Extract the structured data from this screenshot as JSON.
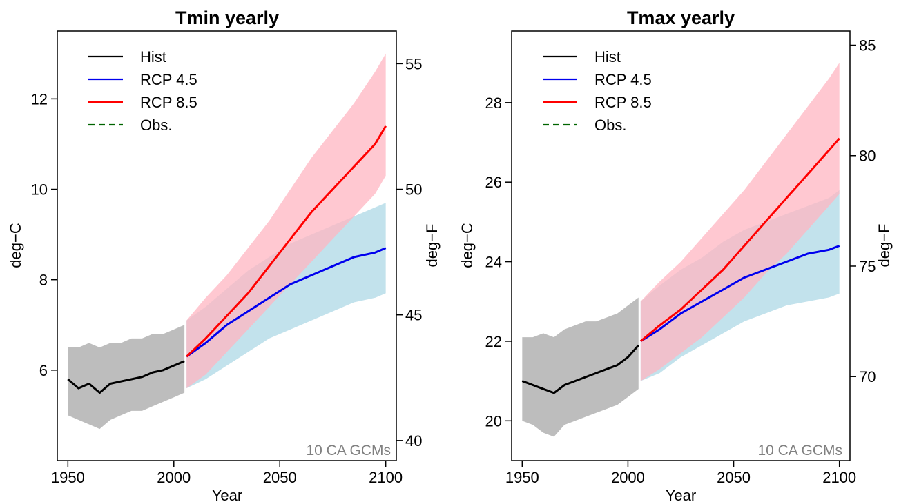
{
  "colors": {
    "hist_line": "#000000",
    "hist_band": "#bdbdbd",
    "rcp45_line": "#0000ee",
    "rcp45_band": "#add8e6",
    "rcp85_line": "#ff0000",
    "rcp85_band": "#ffb6c1",
    "obs_line": "#006400",
    "annotation": "#808080"
  },
  "chart_data": [
    {
      "type": "line",
      "title": "Tmin yearly",
      "xlabel": "Year",
      "ylabel": "deg−C",
      "ylabel_right": "deg−F",
      "xlim": [
        1945,
        2105
      ],
      "ylim": [
        4.0,
        13.5
      ],
      "x_ticks": [
        1950,
        2000,
        2050,
        2100
      ],
      "y_ticks": [
        6,
        8,
        10,
        12
      ],
      "y_ticks_right": [
        40,
        45,
        50,
        55
      ],
      "annotation": "10 CA GCMs",
      "legend_position": "top-left",
      "grid": false,
      "legend": [
        {
          "label": "Hist",
          "key": "hist",
          "style": "solid"
        },
        {
          "label": "RCP 4.5",
          "key": "rcp45",
          "style": "solid"
        },
        {
          "label": "RCP 8.5",
          "key": "rcp85",
          "style": "solid"
        },
        {
          "label": "Obs.",
          "key": "obs",
          "style": "dashed"
        }
      ],
      "series": [
        {
          "name": "Hist",
          "key": "hist",
          "x": [
            1950,
            1955,
            1960,
            1965,
            1970,
            1975,
            1980,
            1985,
            1990,
            1995,
            2000,
            2005
          ],
          "y": [
            5.8,
            5.6,
            5.7,
            5.5,
            5.7,
            5.75,
            5.8,
            5.85,
            5.95,
            6.0,
            6.1,
            6.2
          ],
          "band_low": [
            5.0,
            4.9,
            4.8,
            4.7,
            4.9,
            5.0,
            5.1,
            5.1,
            5.2,
            5.3,
            5.4,
            5.5
          ],
          "band_high": [
            6.5,
            6.5,
            6.6,
            6.5,
            6.6,
            6.6,
            6.7,
            6.7,
            6.8,
            6.8,
            6.9,
            7.0
          ]
        },
        {
          "name": "RCP 4.5",
          "key": "rcp45",
          "x": [
            2006,
            2015,
            2025,
            2035,
            2045,
            2055,
            2065,
            2075,
            2085,
            2095,
            2100
          ],
          "y": [
            6.3,
            6.6,
            7.0,
            7.3,
            7.6,
            7.9,
            8.1,
            8.3,
            8.5,
            8.6,
            8.7
          ],
          "band_low": [
            5.6,
            5.8,
            6.1,
            6.4,
            6.7,
            6.9,
            7.1,
            7.3,
            7.5,
            7.6,
            7.7
          ],
          "band_high": [
            7.1,
            7.4,
            7.8,
            8.2,
            8.5,
            8.8,
            9.0,
            9.2,
            9.4,
            9.6,
            9.7
          ]
        },
        {
          "name": "RCP 8.5",
          "key": "rcp85",
          "x": [
            2006,
            2015,
            2025,
            2035,
            2045,
            2055,
            2065,
            2075,
            2085,
            2095,
            2100
          ],
          "y": [
            6.3,
            6.7,
            7.2,
            7.7,
            8.3,
            8.9,
            9.5,
            10.0,
            10.5,
            11.0,
            11.4
          ],
          "band_low": [
            5.6,
            5.9,
            6.4,
            6.9,
            7.4,
            7.9,
            8.4,
            8.9,
            9.4,
            9.9,
            10.3
          ],
          "band_high": [
            7.1,
            7.6,
            8.1,
            8.7,
            9.3,
            10.0,
            10.7,
            11.3,
            11.9,
            12.6,
            13.0
          ]
        }
      ]
    },
    {
      "type": "line",
      "title": "Tmax yearly",
      "xlabel": "Year",
      "ylabel": "deg−C",
      "ylabel_right": "deg−F",
      "xlim": [
        1945,
        2105
      ],
      "ylim": [
        19.0,
        29.8
      ],
      "x_ticks": [
        1950,
        2000,
        2050,
        2100
      ],
      "y_ticks": [
        20,
        22,
        24,
        26,
        28
      ],
      "y_ticks_right": [
        70,
        75,
        80,
        85
      ],
      "annotation": "10 CA GCMs",
      "legend_position": "top-left",
      "grid": false,
      "legend": [
        {
          "label": "Hist",
          "key": "hist",
          "style": "solid"
        },
        {
          "label": "RCP 4.5",
          "key": "rcp45",
          "style": "solid"
        },
        {
          "label": "RCP 8.5",
          "key": "rcp85",
          "style": "solid"
        },
        {
          "label": "Obs.",
          "key": "obs",
          "style": "dashed"
        }
      ],
      "series": [
        {
          "name": "Hist",
          "key": "hist",
          "x": [
            1950,
            1955,
            1960,
            1965,
            1970,
            1975,
            1980,
            1985,
            1990,
            1995,
            2000,
            2005
          ],
          "y": [
            21.0,
            20.9,
            20.8,
            20.7,
            20.9,
            21.0,
            21.1,
            21.2,
            21.3,
            21.4,
            21.6,
            21.9
          ],
          "band_low": [
            20.0,
            19.9,
            19.7,
            19.6,
            19.9,
            20.0,
            20.1,
            20.2,
            20.3,
            20.4,
            20.6,
            20.8
          ],
          "band_high": [
            22.1,
            22.1,
            22.2,
            22.1,
            22.3,
            22.4,
            22.5,
            22.5,
            22.6,
            22.7,
            22.9,
            23.1
          ]
        },
        {
          "name": "RCP 4.5",
          "key": "rcp45",
          "x": [
            2006,
            2015,
            2025,
            2035,
            2045,
            2055,
            2065,
            2075,
            2085,
            2095,
            2100
          ],
          "y": [
            22.0,
            22.3,
            22.7,
            23.0,
            23.3,
            23.6,
            23.8,
            24.0,
            24.2,
            24.3,
            24.4
          ],
          "band_low": [
            21.0,
            21.2,
            21.6,
            21.9,
            22.2,
            22.5,
            22.7,
            22.9,
            23.0,
            23.1,
            23.2
          ],
          "band_high": [
            23.0,
            23.4,
            23.8,
            24.1,
            24.5,
            24.8,
            25.0,
            25.2,
            25.4,
            25.6,
            25.8
          ]
        },
        {
          "name": "RCP 8.5",
          "key": "rcp85",
          "x": [
            2006,
            2015,
            2025,
            2035,
            2045,
            2055,
            2065,
            2075,
            2085,
            2095,
            2100
          ],
          "y": [
            22.0,
            22.4,
            22.8,
            23.3,
            23.8,
            24.4,
            25.0,
            25.6,
            26.2,
            26.8,
            27.1
          ],
          "band_low": [
            21.0,
            21.3,
            21.7,
            22.1,
            22.6,
            23.1,
            23.7,
            24.2,
            24.8,
            25.4,
            25.7
          ],
          "band_high": [
            23.0,
            23.5,
            24.0,
            24.6,
            25.2,
            25.8,
            26.5,
            27.2,
            27.9,
            28.6,
            29.0
          ]
        }
      ]
    }
  ]
}
